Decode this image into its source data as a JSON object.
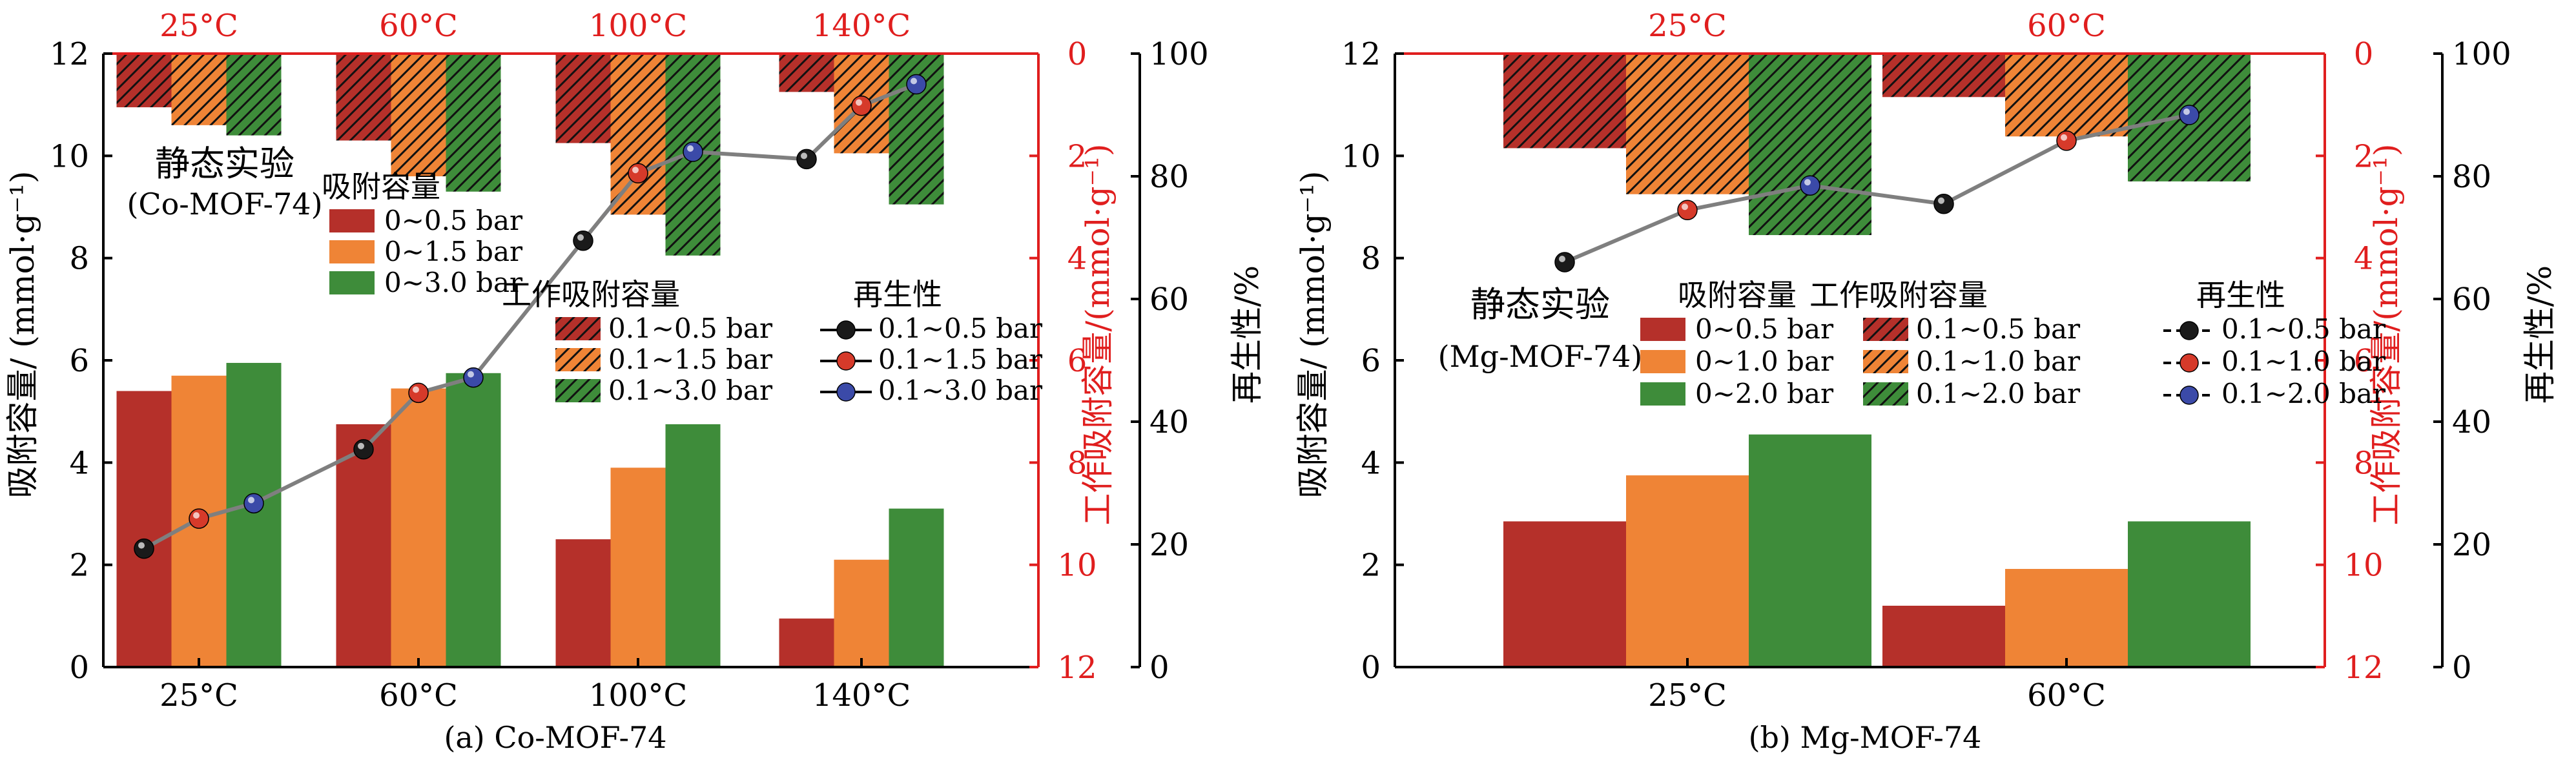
{
  "colors": {
    "red": "#b5302a",
    "orange": "#ef8436",
    "green": "#3e8c3a",
    "accent_red": "#e01e1e",
    "line": "#7f7f7f",
    "dot_black": "#1a1a1a",
    "dot_red": "#d63a2a",
    "dot_blue": "#3b4aa8"
  },
  "chart_data": [
    {
      "type": "bar",
      "caption": "(a) Co-MOF-74",
      "categories": [
        "25°C",
        "60°C",
        "100°C",
        "140°C"
      ],
      "ylabel_left": "吸附容量/ (mmol·g⁻¹)",
      "ylabel_right1": "工作吸附容量/(mmol·g⁻¹)",
      "ylabel_right2": "再生性/%",
      "ylim_left": [
        0,
        12
      ],
      "ylim_right1": [
        12,
        0
      ],
      "ylim_right2": [
        0,
        100
      ],
      "yticks_left": [
        "0",
        "2",
        "4",
        "6",
        "8",
        "10",
        "12"
      ],
      "yticks_right1": [
        "0",
        "2",
        "4",
        "6",
        "8",
        "10",
        "12"
      ],
      "yticks_right2": [
        "0",
        "20",
        "40",
        "60",
        "80",
        "100"
      ],
      "annotation_title": "静态实验",
      "annotation_sub": "(Co-MOF-74)",
      "adsorption": {
        "title": "吸附容量",
        "series": [
          {
            "name": "0~0.5 bar",
            "color_key": "red",
            "values": [
              5.4,
              4.75,
              2.5,
              0.95
            ]
          },
          {
            "name": "0~1.5 bar",
            "color_key": "orange",
            "values": [
              5.7,
              5.45,
              3.9,
              2.1
            ]
          },
          {
            "name": "0~3.0 bar",
            "color_key": "green",
            "values": [
              5.95,
              5.75,
              4.75,
              3.1
            ]
          }
        ]
      },
      "working": {
        "title": "工作吸附容量",
        "series": [
          {
            "name": "0.1~0.5 bar",
            "color_key": "red",
            "values": [
              1.05,
              1.7,
              1.75,
              0.75
            ]
          },
          {
            "name": "0.1~1.5 bar",
            "color_key": "orange",
            "values": [
              1.4,
              2.4,
              3.15,
              1.95
            ]
          },
          {
            "name": "0.1~3.0 bar",
            "color_key": "green",
            "values": [
              1.6,
              2.7,
              3.95,
              2.95
            ]
          }
        ]
      },
      "regeneration": {
        "title": "再生性",
        "series": [
          {
            "name": "0.1~0.5 bar",
            "color_key": "dot_black",
            "values": [
              19.3,
              35.5,
              69.5,
              82.8
            ]
          },
          {
            "name": "0.1~1.5 bar",
            "color_key": "dot_red",
            "values": [
              24.2,
              44.7,
              80.5,
              91.5
            ]
          },
          {
            "name": "0.1~3.0 bar",
            "color_key": "dot_blue",
            "values": [
              26.7,
              47.2,
              84.0,
              95.0
            ]
          }
        ]
      }
    },
    {
      "type": "bar",
      "caption": "(b) Mg-MOF-74",
      "categories": [
        "25°C",
        "60°C"
      ],
      "ylabel_left": "吸附容量/ (mmol·g⁻¹)",
      "ylabel_right1": "工作吸附容量/(mmol·g⁻¹)",
      "ylabel_right2": "再生性/%",
      "ylim_left": [
        0,
        12
      ],
      "ylim_right1": [
        12,
        0
      ],
      "ylim_right2": [
        0,
        100
      ],
      "yticks_left": [
        "0",
        "2",
        "4",
        "6",
        "8",
        "10",
        "12"
      ],
      "yticks_right1": [
        "0",
        "2",
        "4",
        "6",
        "8",
        "10",
        "12"
      ],
      "yticks_right2": [
        "0",
        "20",
        "40",
        "60",
        "80",
        "100"
      ],
      "annotation_title": "静态实验",
      "annotation_sub": "(Mg-MOF-74)",
      "adsorption": {
        "title": "吸附容量",
        "series": [
          {
            "name": "0~0.5 bar",
            "color_key": "red",
            "values": [
              2.85,
              1.2
            ]
          },
          {
            "name": "0~1.0 bar",
            "color_key": "orange",
            "values": [
              3.75,
              1.92
            ]
          },
          {
            "name": "0~2.0 bar",
            "color_key": "green",
            "values": [
              4.55,
              2.85
            ]
          }
        ]
      },
      "working": {
        "title": "工作吸附容量",
        "series": [
          {
            "name": "0.1~0.5 bar",
            "color_key": "red",
            "values": [
              1.85,
              0.85
            ]
          },
          {
            "name": "0.1~1.0 bar",
            "color_key": "orange",
            "values": [
              2.75,
              1.62
            ]
          },
          {
            "name": "0.1~2.0 bar",
            "color_key": "green",
            "values": [
              3.55,
              2.5
            ]
          }
        ]
      },
      "regeneration": {
        "title": "再生性",
        "series": [
          {
            "name": "0.1~0.5 bar",
            "color_key": "dot_black",
            "values": [
              66.0,
              75.5
            ]
          },
          {
            "name": "0.1~1.0 bar",
            "color_key": "dot_red",
            "values": [
              74.5,
              85.8
            ]
          },
          {
            "name": "0.1~2.0 bar",
            "color_key": "dot_blue",
            "values": [
              78.5,
              90.0
            ]
          }
        ]
      }
    }
  ]
}
